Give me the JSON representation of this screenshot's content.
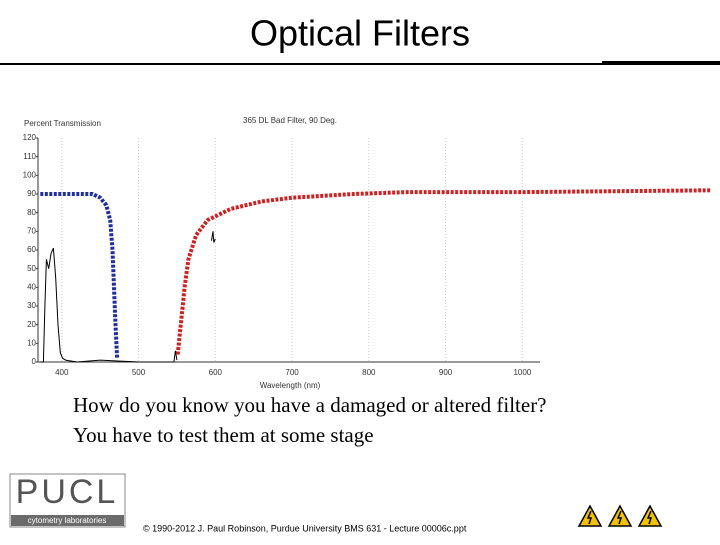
{
  "slide": {
    "title": "Optical Filters",
    "body": [
      "How do you know you have a damaged or altered filter?",
      "You have to test them at some stage"
    ],
    "footer": "© 1990-2012 J. Paul Robinson, Purdue University BMS 631 - Lecture 00006c.ppt",
    "logo": {
      "name": "PUCL",
      "subtitle": "cytometry laboratories"
    }
  },
  "chart_data": {
    "type": "line",
    "title": "365 DL Bad Filter, 90 Deg.",
    "y_label": "Percent Transmission",
    "x_label": "Wavelength (nm)",
    "xlim": [
      369,
      1023
    ],
    "ylim": [
      0,
      120
    ],
    "xticks": [
      400,
      500,
      600,
      700,
      800,
      900,
      1000
    ],
    "yticks": [
      0,
      10,
      20,
      30,
      40,
      50,
      60,
      70,
      80,
      90,
      100,
      110,
      120
    ],
    "grid": true,
    "series": [
      {
        "color": "#000000",
        "dotted": false,
        "x": [
          372,
          376,
          378,
          380,
          383,
          386,
          389,
          392,
          395,
          398,
          401,
          405,
          420,
          450,
          500,
          540,
          546,
          548,
          550,
          null,
          595,
          597,
          598,
          600
        ],
        "values": [
          0,
          0,
          30,
          55,
          50,
          58,
          61,
          45,
          20,
          5,
          2,
          1,
          0,
          1,
          0,
          0,
          0,
          6,
          1,
          null,
          65,
          70,
          64,
          66
        ]
      },
      {
        "color": "#1f2fa0",
        "dotted": true,
        "x": [
          372,
          440,
          450,
          458,
          463,
          466,
          468,
          470,
          472
        ],
        "values": [
          90,
          90,
          88,
          84,
          76,
          60,
          40,
          20,
          2
        ]
      },
      {
        "color": "#cc2222",
        "dotted": true,
        "x": [
          551,
          555,
          560,
          565,
          575,
          590,
          620,
          660,
          700,
          780,
          850,
          1000,
          1246
        ],
        "values": [
          4,
          20,
          40,
          55,
          68,
          76,
          82,
          86,
          88,
          90,
          91,
          91,
          92
        ]
      }
    ]
  }
}
